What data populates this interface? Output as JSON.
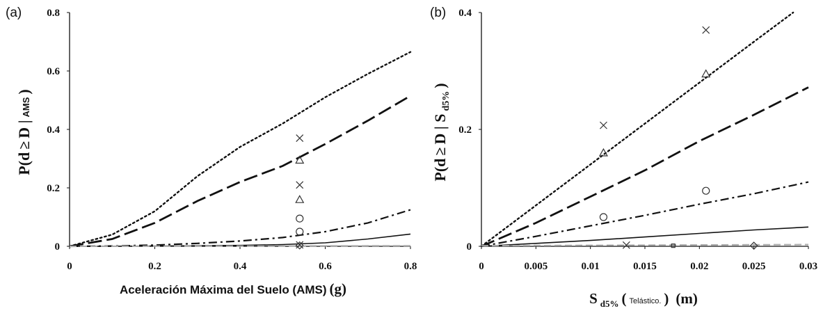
{
  "chart_data": [
    {
      "type": "line",
      "panel_label": "(a)",
      "xlabel": {
        "main": "Aceleración Máxima del Suelo (AMS)",
        "unit": "(g)"
      },
      "ylabel": {
        "prefix": "P(d",
        "ge": "≥",
        "mid": "D |",
        "cond": "AMS",
        "suffix": ")"
      },
      "xlim": [
        0,
        0.8
      ],
      "ylim": [
        0,
        0.8
      ],
      "xticks": [
        0,
        0.2,
        0.4,
        0.6,
        0.8
      ],
      "xtick_labels": [
        "0",
        "0.2",
        "0.4",
        "0.6",
        "0.8"
      ],
      "yticks": [
        0,
        0.2,
        0.4,
        0.6,
        0.8
      ],
      "ytick_labels": [
        "0",
        "0.2",
        "0.4",
        "0.6",
        "0.8"
      ],
      "series": [
        {
          "style": "dotted",
          "x": [
            0,
            0.1,
            0.2,
            0.3,
            0.4,
            0.5,
            0.6,
            0.7,
            0.8
          ],
          "y": [
            0,
            0.04,
            0.12,
            0.24,
            0.34,
            0.42,
            0.51,
            0.59,
            0.665
          ]
        },
        {
          "style": "long-dash",
          "x": [
            0,
            0.1,
            0.2,
            0.3,
            0.4,
            0.5,
            0.6,
            0.7,
            0.8
          ],
          "y": [
            0,
            0.025,
            0.08,
            0.155,
            0.22,
            0.275,
            0.35,
            0.43,
            0.515
          ]
        },
        {
          "style": "dash-dot",
          "x": [
            0,
            0.1,
            0.2,
            0.3,
            0.4,
            0.5,
            0.6,
            0.7,
            0.8
          ],
          "y": [
            0,
            0.001,
            0.004,
            0.01,
            0.018,
            0.03,
            0.05,
            0.08,
            0.125
          ]
        },
        {
          "style": "solid",
          "x": [
            0,
            0.1,
            0.2,
            0.3,
            0.4,
            0.5,
            0.6,
            0.7,
            0.8
          ],
          "y": [
            0,
            0,
            0.001,
            0.002,
            0.003,
            0.006,
            0.012,
            0.025,
            0.042
          ]
        },
        {
          "style": "gray-dash",
          "x": [
            0,
            0.8
          ],
          "y": [
            0,
            0.002
          ]
        }
      ],
      "points": [
        {
          "marker": "x",
          "x": 0.54,
          "y": 0.37
        },
        {
          "marker": "triangle",
          "x": 0.54,
          "y": 0.295
        },
        {
          "marker": "x",
          "x": 0.54,
          "y": 0.21
        },
        {
          "marker": "triangle",
          "x": 0.54,
          "y": 0.16
        },
        {
          "marker": "circle",
          "x": 0.54,
          "y": 0.095
        },
        {
          "marker": "circle",
          "x": 0.54,
          "y": 0.05
        },
        {
          "marker": "x",
          "x": 0.54,
          "y": 0.005
        },
        {
          "marker": "diamond",
          "x": 0.54,
          "y": 0.003
        }
      ]
    },
    {
      "type": "line",
      "panel_label": "(b)",
      "xlabel": {
        "main": "S",
        "sub": "d5%",
        "paren_open": "(",
        "small": "Telástico.",
        "paren_close": ")",
        "unit": "(m)"
      },
      "ylabel": {
        "prefix": "P(d",
        "ge": "≥",
        "mid": "D | S",
        "sub": "d5%",
        "suffix": ")"
      },
      "xlim": [
        0,
        0.03
      ],
      "ylim": [
        0,
        0.4
      ],
      "xticks": [
        0,
        0.005,
        0.01,
        0.015,
        0.02,
        0.025,
        0.03
      ],
      "xtick_labels": [
        "0",
        "0.005",
        "0.01",
        "0.015",
        "0.02",
        "0.025",
        "0.03"
      ],
      "yticks": [
        0,
        0.2,
        0.4
      ],
      "ytick_labels": [
        "0",
        "0.2",
        "0.4"
      ],
      "series": [
        {
          "style": "dotted",
          "x": [
            0,
            0.005,
            0.01,
            0.015,
            0.02,
            0.025,
            0.0286
          ],
          "y": [
            0,
            0.07,
            0.14,
            0.21,
            0.28,
            0.35,
            0.4
          ]
        },
        {
          "style": "long-dash",
          "x": [
            0,
            0.005,
            0.01,
            0.015,
            0.02,
            0.025,
            0.03
          ],
          "y": [
            0,
            0.04,
            0.085,
            0.13,
            0.18,
            0.225,
            0.272
          ]
        },
        {
          "style": "dash-dot",
          "x": [
            0,
            0.005,
            0.01,
            0.015,
            0.02,
            0.025,
            0.03
          ],
          "y": [
            0,
            0.017,
            0.035,
            0.053,
            0.072,
            0.09,
            0.11
          ]
        },
        {
          "style": "solid",
          "x": [
            0,
            0.005,
            0.01,
            0.015,
            0.02,
            0.025,
            0.03
          ],
          "y": [
            0,
            0.005,
            0.01,
            0.016,
            0.022,
            0.028,
            0.033
          ]
        },
        {
          "style": "gray-dash",
          "x": [
            0,
            0.03
          ],
          "y": [
            0.001,
            0.003
          ]
        }
      ],
      "points": [
        {
          "marker": "x",
          "x": 0.0206,
          "y": 0.37
        },
        {
          "marker": "triangle",
          "x": 0.0206,
          "y": 0.295
        },
        {
          "marker": "x",
          "x": 0.0112,
          "y": 0.207
        },
        {
          "marker": "triangle",
          "x": 0.0112,
          "y": 0.16
        },
        {
          "marker": "circle",
          "x": 0.0206,
          "y": 0.095
        },
        {
          "marker": "circle",
          "x": 0.0112,
          "y": 0.05
        },
        {
          "marker": "x",
          "x": 0.0133,
          "y": 0.002
        },
        {
          "marker": "square",
          "x": 0.0176,
          "y": 0.001
        },
        {
          "marker": "diamond",
          "x": 0.025,
          "y": 0.001
        }
      ]
    }
  ]
}
